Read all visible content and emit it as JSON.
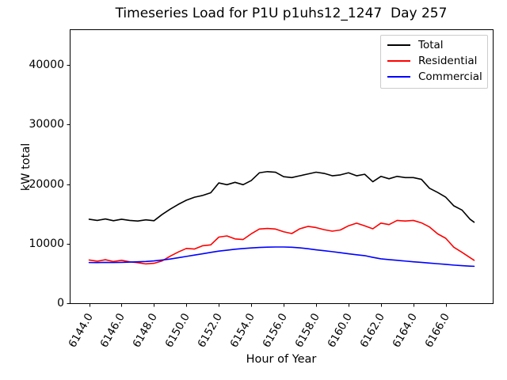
{
  "figure": {
    "background": "#ffffff",
    "spine_color": "#000000"
  },
  "chart_data": {
    "type": "line",
    "title": "Timeseries Load for P1U p1uhs12_1247  Day 257",
    "xlabel": "Hour of Year",
    "ylabel": "kW total",
    "grid": false,
    "legend": {
      "position": "upper right",
      "entries": [
        "Total",
        "Residential",
        "Commercial"
      ]
    },
    "xlim": [
      6142.8,
      6168.9
    ],
    "ylim": [
      0,
      46000
    ],
    "xticks": {
      "values": [
        6144,
        6146,
        6148,
        6150,
        6152,
        6154,
        6156,
        6158,
        6160,
        6162,
        6164,
        6166
      ],
      "labels": [
        "6144.0",
        "6146.0",
        "6148.0",
        "6150.0",
        "6152.0",
        "6154.0",
        "6156.0",
        "6158.0",
        "6160.0",
        "6162.0",
        "6164.0",
        "6166.0"
      ]
    },
    "yticks": {
      "values": [
        0,
        10000,
        20000,
        30000,
        40000
      ],
      "labels": [
        "0",
        "10000",
        "20000",
        "30000",
        "40000"
      ]
    },
    "x": [
      6144.0,
      6144.5,
      6145.0,
      6145.5,
      6146.0,
      6146.5,
      6147.0,
      6147.5,
      6148.0,
      6148.5,
      6149.0,
      6149.5,
      6150.0,
      6150.5,
      6151.0,
      6151.5,
      6152.0,
      6152.5,
      6153.0,
      6153.5,
      6154.0,
      6154.5,
      6155.0,
      6155.5,
      6156.0,
      6156.5,
      6157.0,
      6157.5,
      6158.0,
      6158.5,
      6159.0,
      6159.5,
      6160.0,
      6160.5,
      6161.0,
      6161.5,
      6162.0,
      6162.5,
      6163.0,
      6163.5,
      6164.0,
      6164.5,
      6165.0,
      6165.5,
      6166.0,
      6166.5,
      6167.0,
      6167.5,
      6167.75
    ],
    "series": [
      {
        "name": "Total",
        "color": "#000000",
        "values": [
          14100,
          13900,
          14150,
          13850,
          14100,
          13900,
          13800,
          14000,
          13850,
          14900,
          15800,
          16600,
          17300,
          17800,
          18100,
          18550,
          20200,
          19900,
          20300,
          19900,
          20600,
          21900,
          22100,
          22000,
          21250,
          21100,
          21400,
          21700,
          22000,
          21800,
          21400,
          21550,
          21900,
          21400,
          21650,
          20400,
          21300,
          20900,
          21300,
          21100,
          21100,
          20800,
          19300,
          18600,
          17800,
          16350,
          15650,
          14100,
          13600
        ]
      },
      {
        "name": "Residential",
        "color": "#ff0000",
        "values": [
          7250,
          7050,
          7300,
          7000,
          7200,
          6950,
          6800,
          6600,
          6700,
          7100,
          7900,
          8600,
          9200,
          9100,
          9650,
          9800,
          11100,
          11300,
          10800,
          10700,
          11650,
          12450,
          12550,
          12450,
          12000,
          11700,
          12500,
          12900,
          12700,
          12350,
          12100,
          12300,
          13000,
          13450,
          13000,
          12500,
          13450,
          13200,
          13900,
          13800,
          13900,
          13500,
          12800,
          11650,
          10900,
          9400,
          8550,
          7650,
          7200
        ]
      },
      {
        "name": "Commercial",
        "color": "#0000ff",
        "values": [
          6830,
          6820,
          6850,
          6830,
          6860,
          6900,
          6950,
          7000,
          7100,
          7250,
          7420,
          7640,
          7860,
          8090,
          8300,
          8530,
          8750,
          8900,
          9060,
          9180,
          9280,
          9360,
          9420,
          9440,
          9440,
          9400,
          9300,
          9150,
          8970,
          8820,
          8660,
          8480,
          8300,
          8140,
          7990,
          7700,
          7450,
          7320,
          7200,
          7080,
          6960,
          6850,
          6740,
          6630,
          6520,
          6400,
          6300,
          6230,
          6200
        ]
      }
    ]
  }
}
